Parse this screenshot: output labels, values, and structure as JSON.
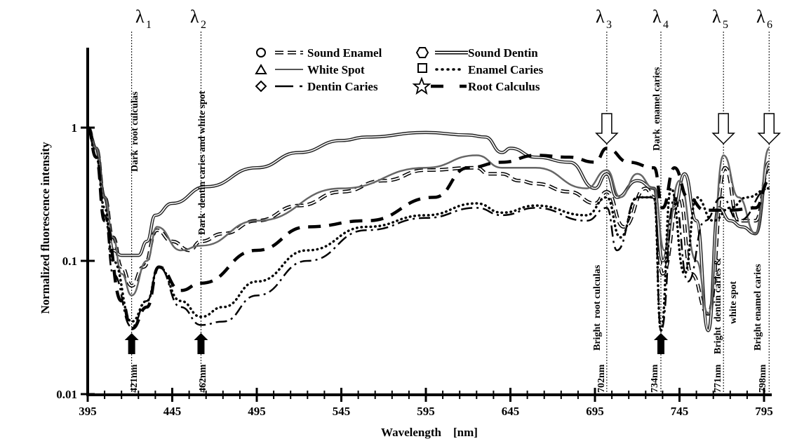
{
  "chart_data": {
    "type": "line",
    "title": "",
    "xlabel": "Wavelength    [nm]",
    "ylabel": "Normalized fluorescence intensity",
    "xlim": [
      395,
      800
    ],
    "ylim": [
      0.01,
      4
    ],
    "yscale": "log",
    "grid": false,
    "legend_position": "top-center",
    "x_ticks": [
      "395",
      "445",
      "495",
      "545",
      "595",
      "645",
      "695",
      "745",
      "795"
    ],
    "y_ticks": [
      "1",
      "0.1",
      "0.01"
    ],
    "series": [
      {
        "name": "Sound Enamel",
        "marker": "circle",
        "style": "hollow-dashed",
        "x": [
          395,
          400,
          405,
          410,
          415,
          421,
          428,
          436,
          445,
          455,
          462,
          475,
          495,
          520,
          545,
          570,
          595,
          625,
          632,
          640,
          650,
          660,
          680,
          695,
          702,
          712,
          725,
          730,
          735,
          745,
          752,
          762,
          772,
          780,
          790,
          798
        ],
        "y": [
          1,
          0.7,
          0.3,
          0.15,
          0.09,
          0.065,
          0.09,
          0.17,
          0.14,
          0.12,
          0.14,
          0.16,
          0.2,
          0.26,
          0.33,
          0.4,
          0.48,
          0.5,
          0.45,
          0.45,
          0.4,
          0.38,
          0.33,
          0.27,
          0.33,
          0.18,
          0.35,
          0.3,
          0.08,
          0.3,
          0.08,
          0.04,
          0.5,
          0.2,
          0.2,
          0.5
        ]
      },
      {
        "name": "Sound Dentin",
        "marker": "hexagon",
        "style": "double-line",
        "x": [
          395,
          400,
          405,
          410,
          415,
          425,
          430,
          435,
          445,
          465,
          495,
          520,
          545,
          560,
          595,
          620,
          630,
          640,
          645,
          660,
          680,
          695,
          702,
          708,
          720,
          730,
          735,
          742,
          748,
          755,
          762,
          768,
          775,
          782,
          790,
          798
        ],
        "y": [
          1,
          0.7,
          0.3,
          0.12,
          0.11,
          0.11,
          0.14,
          0.22,
          0.27,
          0.36,
          0.5,
          0.65,
          0.8,
          0.85,
          0.92,
          0.88,
          0.85,
          0.65,
          0.7,
          0.6,
          0.55,
          0.35,
          0.45,
          0.3,
          0.4,
          0.35,
          0.1,
          0.25,
          0.45,
          0.2,
          0.03,
          0.25,
          0.2,
          0.18,
          0.16,
          0.55
        ]
      },
      {
        "name": "White Spot",
        "marker": "triangle",
        "style": "solid-gray",
        "x": [
          395,
          400,
          405,
          410,
          415,
          421,
          430,
          436,
          450,
          462,
          495,
          545,
          595,
          625,
          640,
          660,
          690,
          702,
          710,
          720,
          730,
          736,
          745,
          755,
          762,
          771,
          780,
          790,
          798
        ],
        "y": [
          1,
          0.7,
          0.3,
          0.15,
          0.08,
          0.055,
          0.1,
          0.18,
          0.12,
          0.13,
          0.2,
          0.35,
          0.5,
          0.62,
          0.5,
          0.5,
          0.35,
          0.48,
          0.3,
          0.45,
          0.35,
          0.12,
          0.4,
          0.1,
          0.04,
          0.62,
          0.3,
          0.16,
          0.7
        ]
      },
      {
        "name": "Enamel Caries",
        "marker": "square",
        "style": "dotted",
        "x": [
          395,
          400,
          405,
          410,
          421,
          430,
          437,
          450,
          462,
          475,
          495,
          525,
          560,
          595,
          625,
          640,
          660,
          690,
          702,
          710,
          720,
          730,
          734,
          740,
          748,
          755,
          765,
          775,
          785,
          798
        ],
        "y": [
          1,
          0.6,
          0.25,
          0.1,
          0.035,
          0.05,
          0.09,
          0.05,
          0.038,
          0.045,
          0.07,
          0.12,
          0.18,
          0.22,
          0.27,
          0.23,
          0.26,
          0.22,
          0.3,
          0.15,
          0.3,
          0.3,
          0.03,
          0.35,
          0.08,
          0.3,
          0.2,
          0.25,
          0.3,
          0.35
        ]
      },
      {
        "name": "Dentin Caries",
        "marker": "diamond",
        "style": "dash-dot",
        "x": [
          395,
          400,
          405,
          410,
          421,
          430,
          437,
          450,
          462,
          475,
          495,
          525,
          560,
          595,
          625,
          640,
          660,
          690,
          702,
          708,
          720,
          730,
          734,
          742,
          750,
          760,
          770,
          780,
          798
        ],
        "y": [
          1,
          0.6,
          0.22,
          0.08,
          0.032,
          0.05,
          0.09,
          0.045,
          0.033,
          0.035,
          0.055,
          0.1,
          0.17,
          0.21,
          0.25,
          0.22,
          0.25,
          0.2,
          0.25,
          0.12,
          0.3,
          0.3,
          0.03,
          0.3,
          0.07,
          0.2,
          0.3,
          0.2,
          0.35
        ]
      },
      {
        "name": "Root Calculus",
        "marker": "star",
        "style": "heavy-dashed",
        "x": [
          395,
          400,
          405,
          415,
          421,
          430,
          437,
          450,
          462,
          495,
          525,
          560,
          600,
          620,
          640,
          660,
          680,
          695,
          702,
          715,
          730,
          735,
          742,
          750,
          760,
          775,
          790,
          798
        ],
        "y": [
          1,
          0.6,
          0.2,
          0.05,
          0.031,
          0.045,
          0.09,
          0.06,
          0.068,
          0.12,
          0.18,
          0.2,
          0.3,
          0.5,
          0.55,
          0.62,
          0.6,
          0.55,
          0.7,
          0.55,
          0.5,
          0.25,
          0.5,
          0.3,
          0.24,
          0.24,
          0.25,
          0.4
        ]
      }
    ],
    "markers": [
      {
        "lambda": "λ",
        "sub": "1",
        "wavelength": 421,
        "label": "421nm",
        "annotation": "Dark  root culculas",
        "arrow": "up-filled"
      },
      {
        "lambda": "λ",
        "sub": "2",
        "wavelength": 462,
        "label": "462nm",
        "annotation": "Dark  dentin caries and white spot",
        "arrow": "up-filled"
      },
      {
        "lambda": "λ",
        "sub": "3",
        "wavelength": 702,
        "label": "702nm",
        "annotation": "Bright  root culculas",
        "arrow": "down-open"
      },
      {
        "lambda": "λ",
        "sub": "4",
        "wavelength": 734,
        "label": "734nm",
        "annotation": "Dark  enamel caries",
        "arrow": "up-filled"
      },
      {
        "lambda": "λ",
        "sub": "5",
        "wavelength": 771,
        "label": "771nm",
        "annotation": "Bright  dentin caries &",
        "annotation2": "white spot",
        "arrow": "down-open"
      },
      {
        "lambda": "λ",
        "sub": "6",
        "wavelength": 798,
        "label": "798nm",
        "annotation": "Bright enamel caries",
        "arrow": "down-open"
      }
    ]
  }
}
